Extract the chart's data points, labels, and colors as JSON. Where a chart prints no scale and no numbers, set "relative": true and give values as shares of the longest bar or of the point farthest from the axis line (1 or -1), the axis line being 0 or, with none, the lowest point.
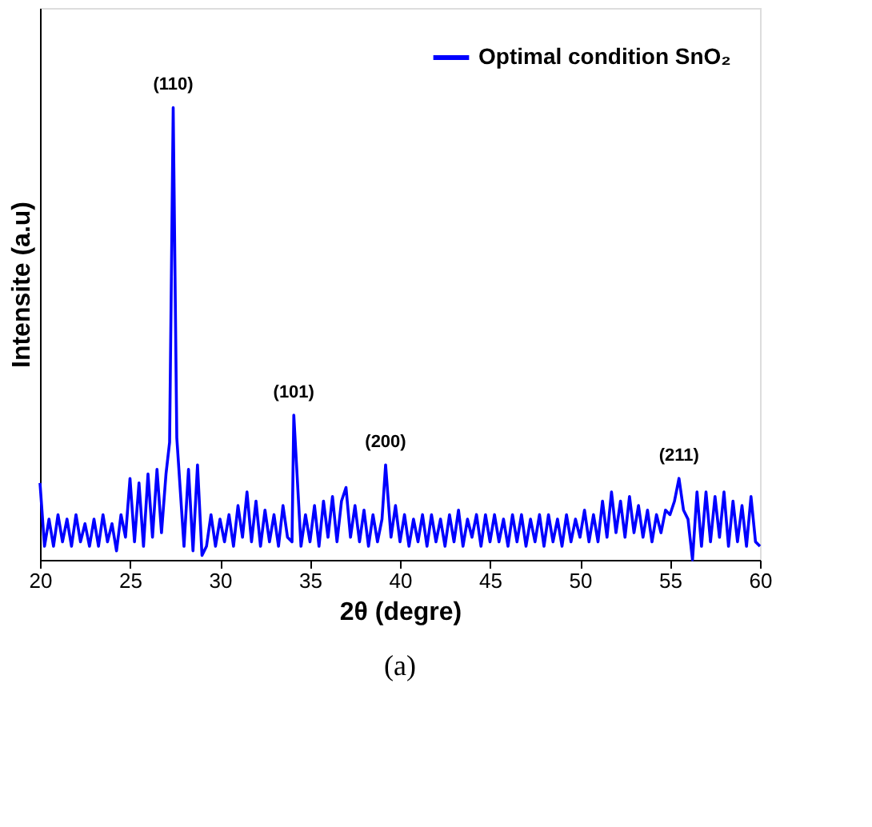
{
  "chart_data": {
    "type": "line",
    "xlabel": "2θ (degre)",
    "ylabel": "Intensite (a.u)",
    "relative": true,
    "xlim": [
      20,
      60
    ],
    "xticks": [
      20,
      25,
      30,
      35,
      40,
      45,
      50,
      55,
      60
    ],
    "grid": false,
    "legend": "top right",
    "marker": "none",
    "line_style": "solid",
    "x": [
      20,
      20.25,
      20.5,
      20.75,
      21,
      21.25,
      21.5,
      21.75,
      22,
      22.25,
      22.5,
      22.75,
      23,
      23.25,
      23.5,
      23.75,
      24,
      24.25,
      24.5,
      24.75,
      25,
      25.25,
      25.5,
      25.75,
      26,
      26.25,
      26.5,
      26.75,
      27,
      27.2,
      27.4,
      27.6,
      28,
      28.25,
      28.5,
      28.75,
      29,
      29.25,
      29.5,
      29.75,
      30,
      30.25,
      30.5,
      30.75,
      31,
      31.25,
      31.5,
      31.75,
      32,
      32.25,
      32.5,
      32.75,
      33,
      33.25,
      33.5,
      33.75,
      34,
      34.1,
      34.5,
      34.75,
      35,
      35.25,
      35.5,
      35.75,
      36,
      36.25,
      36.5,
      36.75,
      37,
      37.25,
      37.5,
      37.75,
      38,
      38.25,
      38.5,
      38.75,
      39,
      39.2,
      39.5,
      39.75,
      40,
      40.25,
      40.5,
      40.75,
      41,
      41.25,
      41.5,
      41.75,
      42,
      42.25,
      42.5,
      42.75,
      43,
      43.25,
      43.5,
      43.75,
      44,
      44.25,
      44.5,
      44.75,
      45,
      45.25,
      45.5,
      45.75,
      46,
      46.25,
      46.5,
      46.75,
      47,
      47.25,
      47.5,
      47.75,
      48,
      48.25,
      48.5,
      48.75,
      49,
      49.25,
      49.5,
      49.75,
      50,
      50.25,
      50.5,
      50.75,
      51,
      51.25,
      51.5,
      51.75,
      52,
      52.25,
      52.5,
      52.75,
      53,
      53.25,
      53.5,
      53.75,
      54,
      54.25,
      54.5,
      54.75,
      55,
      55.25,
      55.5,
      55.75,
      56,
      56.25,
      56.5,
      56.75,
      57,
      57.25,
      57.5,
      57.75,
      58,
      58.25,
      58.5,
      58.75,
      59,
      59.25,
      59.5,
      59.75,
      60
    ],
    "series": [
      {
        "name": "Optimal condition SnO₂",
        "color": "#0000ff",
        "values": [
          0.17,
          0.03,
          0.09,
          0.03,
          0.1,
          0.04,
          0.09,
          0.03,
          0.1,
          0.04,
          0.08,
          0.03,
          0.09,
          0.03,
          0.1,
          0.04,
          0.08,
          0.02,
          0.1,
          0.05,
          0.18,
          0.04,
          0.17,
          0.03,
          0.19,
          0.05,
          0.2,
          0.06,
          0.19,
          0.26,
          1.0,
          0.27,
          0.03,
          0.2,
          0.02,
          0.21,
          0.01,
          0.03,
          0.1,
          0.03,
          0.09,
          0.04,
          0.1,
          0.03,
          0.12,
          0.05,
          0.15,
          0.04,
          0.13,
          0.03,
          0.11,
          0.04,
          0.1,
          0.03,
          0.12,
          0.05,
          0.04,
          0.32,
          0.03,
          0.1,
          0.04,
          0.12,
          0.03,
          0.13,
          0.05,
          0.14,
          0.04,
          0.13,
          0.16,
          0.05,
          0.12,
          0.04,
          0.11,
          0.03,
          0.1,
          0.04,
          0.09,
          0.21,
          0.05,
          0.12,
          0.04,
          0.1,
          0.03,
          0.09,
          0.04,
          0.1,
          0.03,
          0.1,
          0.04,
          0.09,
          0.03,
          0.1,
          0.04,
          0.11,
          0.03,
          0.09,
          0.05,
          0.1,
          0.03,
          0.1,
          0.04,
          0.1,
          0.04,
          0.09,
          0.03,
          0.1,
          0.04,
          0.1,
          0.03,
          0.09,
          0.04,
          0.1,
          0.03,
          0.1,
          0.04,
          0.09,
          0.03,
          0.1,
          0.04,
          0.09,
          0.05,
          0.11,
          0.04,
          0.1,
          0.04,
          0.13,
          0.05,
          0.15,
          0.06,
          0.13,
          0.05,
          0.14,
          0.06,
          0.12,
          0.05,
          0.11,
          0.04,
          0.1,
          0.06,
          0.11,
          0.1,
          0.13,
          0.18,
          0.11,
          0.09,
          0.0,
          0.15,
          0.03,
          0.15,
          0.04,
          0.14,
          0.05,
          0.15,
          0.03,
          0.13,
          0.04,
          0.12,
          0.03,
          0.14,
          0.04,
          0.03
        ]
      }
    ],
    "annotations": [
      {
        "text": "(110)",
        "x": 27.4,
        "y": 1.0
      },
      {
        "text": "(101)",
        "x": 34.1,
        "y": 0.32
      },
      {
        "text": "(200)",
        "x": 39.2,
        "y": 0.21
      },
      {
        "text": "(211)",
        "x": 55.5,
        "y": 0.18
      },
      "(a)"
    ]
  }
}
